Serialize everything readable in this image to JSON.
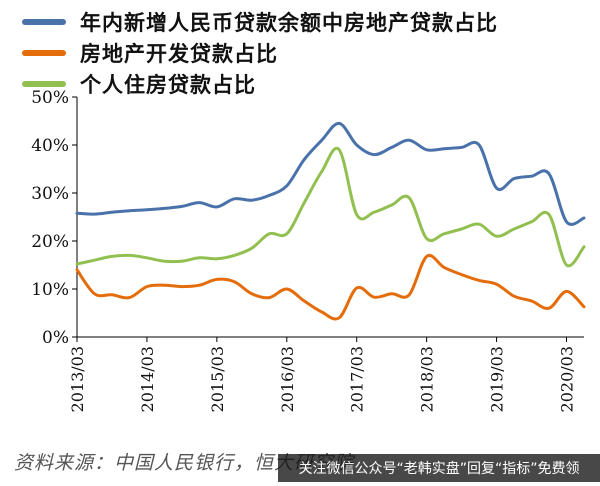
{
  "chart_data": {
    "type": "line",
    "title": "",
    "xlabel": "",
    "ylabel": "",
    "ylim": [
      0,
      50
    ],
    "ytick_labels": [
      "0%",
      "10%",
      "20%",
      "30%",
      "40%",
      "50%"
    ],
    "xtick_labels": [
      "2013/03",
      "2014/03",
      "2015/03",
      "2016/03",
      "2017/03",
      "2018/03",
      "2019/03",
      "2020/03"
    ],
    "legend_position": "top-left",
    "series": [
      {
        "name": "年内新增人民币贷款余额中房地产贷款占比",
        "color": "#4a72aa",
        "points": [
          [
            "2013/03",
            25.8
          ],
          [
            "2013/06",
            25.6
          ],
          [
            "2013/09",
            26.0
          ],
          [
            "2013/12",
            26.3
          ],
          [
            "2014/03",
            26.5
          ],
          [
            "2014/06",
            26.8
          ],
          [
            "2014/09",
            27.2
          ],
          [
            "2014/12",
            28.0
          ],
          [
            "2015/03",
            27.1
          ],
          [
            "2015/06",
            28.8
          ],
          [
            "2015/09",
            28.5
          ],
          [
            "2015/12",
            29.5
          ],
          [
            "2016/03",
            31.5
          ],
          [
            "2016/06",
            37.0
          ],
          [
            "2016/09",
            41.0
          ],
          [
            "2016/12",
            44.5
          ],
          [
            "2017/03",
            40.0
          ],
          [
            "2017/06",
            38.0
          ],
          [
            "2017/09",
            39.5
          ],
          [
            "2017/12",
            41.0
          ],
          [
            "2018/03",
            39.0
          ],
          [
            "2018/06",
            39.2
          ],
          [
            "2018/09",
            39.5
          ],
          [
            "2018/12",
            40.0
          ],
          [
            "2019/03",
            31.0
          ],
          [
            "2019/06",
            33.0
          ],
          [
            "2019/09",
            33.5
          ],
          [
            "2019/12",
            34.0
          ],
          [
            "2020/03",
            24.0
          ],
          [
            "2020/06",
            24.8
          ]
        ]
      },
      {
        "name": "房地产开发贷款占比",
        "color": "#e46c0a",
        "points": [
          [
            "2013/03",
            14.0
          ],
          [
            "2013/06",
            9.0
          ],
          [
            "2013/09",
            8.8
          ],
          [
            "2013/12",
            8.2
          ],
          [
            "2014/03",
            10.5
          ],
          [
            "2014/06",
            10.8
          ],
          [
            "2014/09",
            10.5
          ],
          [
            "2014/12",
            10.8
          ],
          [
            "2015/03",
            12.0
          ],
          [
            "2015/06",
            11.5
          ],
          [
            "2015/09",
            9.0
          ],
          [
            "2015/12",
            8.2
          ],
          [
            "2016/03",
            10.0
          ],
          [
            "2016/06",
            7.5
          ],
          [
            "2016/09",
            5.2
          ],
          [
            "2016/12",
            4.0
          ],
          [
            "2017/03",
            10.2
          ],
          [
            "2017/06",
            8.3
          ],
          [
            "2017/09",
            9.0
          ],
          [
            "2017/12",
            8.8
          ],
          [
            "2018/03",
            16.8
          ],
          [
            "2018/06",
            14.5
          ],
          [
            "2018/09",
            13.0
          ],
          [
            "2018/12",
            11.8
          ],
          [
            "2019/03",
            11.0
          ],
          [
            "2019/06",
            8.5
          ],
          [
            "2019/09",
            7.5
          ],
          [
            "2019/12",
            6.0
          ],
          [
            "2020/03",
            9.5
          ],
          [
            "2020/06",
            6.3
          ]
        ]
      },
      {
        "name": "个人住房贷款占比",
        "color": "#92c050",
        "points": [
          [
            "2013/03",
            15.2
          ],
          [
            "2013/06",
            16.0
          ],
          [
            "2013/09",
            16.8
          ],
          [
            "2013/12",
            17.0
          ],
          [
            "2014/03",
            16.5
          ],
          [
            "2014/06",
            15.8
          ],
          [
            "2014/09",
            15.8
          ],
          [
            "2014/12",
            16.5
          ],
          [
            "2015/03",
            16.3
          ],
          [
            "2015/06",
            17.0
          ],
          [
            "2015/09",
            18.5
          ],
          [
            "2015/12",
            21.5
          ],
          [
            "2016/03",
            21.5
          ],
          [
            "2016/06",
            28.0
          ],
          [
            "2016/09",
            34.5
          ],
          [
            "2016/12",
            39.0
          ],
          [
            "2017/03",
            25.5
          ],
          [
            "2017/06",
            26.0
          ],
          [
            "2017/09",
            27.5
          ],
          [
            "2017/12",
            29.0
          ],
          [
            "2018/03",
            20.5
          ],
          [
            "2018/06",
            21.5
          ],
          [
            "2018/09",
            22.5
          ],
          [
            "2018/12",
            23.5
          ],
          [
            "2019/03",
            21.0
          ],
          [
            "2019/06",
            22.5
          ],
          [
            "2019/09",
            24.0
          ],
          [
            "2019/12",
            25.5
          ],
          [
            "2020/03",
            15.0
          ],
          [
            "2020/06",
            18.8
          ]
        ]
      }
    ]
  },
  "source_text": "资料来源：中国人民银行，恒大研究院",
  "watermark_text": "关注微信公众号“老韩实盘”回复“指标”免费领"
}
